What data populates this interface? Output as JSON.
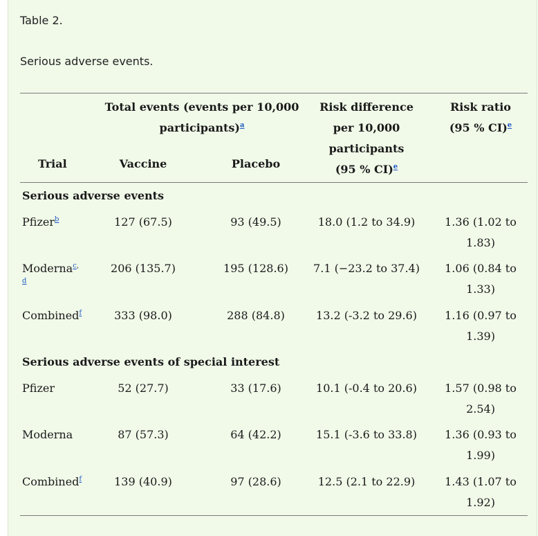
{
  "table_label": "Table 2.",
  "table_title": "Serious adverse events.",
  "headers": {
    "total_events": "Total events (events per 10,000",
    "total_events_2": "participants)",
    "total_events_fn": "a",
    "trial": "Trial",
    "vaccine": "Vaccine",
    "placebo": "Placebo",
    "risk_diff_1": "Risk difference",
    "risk_diff_2": "per 10,000",
    "risk_diff_3": "participants",
    "risk_diff_4": "(95 % CI)",
    "risk_diff_fn": "e",
    "risk_ratio_1": "Risk ratio",
    "risk_ratio_2": "(95 % CI)",
    "risk_ratio_fn": "e"
  },
  "sections": [
    {
      "title": "Serious adverse events",
      "rows": [
        {
          "trial": "Pfizer",
          "fn": [
            "b"
          ],
          "vaccine": "127 (67.5)",
          "placebo": "93 (49.5)",
          "risk_difference": "18.0 (1.2 to 34.9)",
          "risk_ratio_1": "1.36 (1.02 to",
          "risk_ratio_2": "1.83)"
        },
        {
          "trial": "Moderna",
          "fn": [
            "c",
            "d"
          ],
          "vaccine": "206 (135.7)",
          "placebo": "195 (128.6)",
          "risk_difference": "7.1 (−23.2 to 37.4)",
          "risk_ratio_1": "1.06 (0.84 to",
          "risk_ratio_2": "1.33)"
        },
        {
          "trial": "Combined",
          "fn": [
            "f"
          ],
          "vaccine": "333 (98.0)",
          "placebo": "288 (84.8)",
          "risk_difference": "13.2 (-3.2 to 29.6)",
          "risk_ratio_1": "1.16 (0.97 to",
          "risk_ratio_2": "1.39)"
        }
      ]
    },
    {
      "title": "Serious adverse events of special interest",
      "rows": [
        {
          "trial": "Pfizer",
          "fn": [],
          "vaccine": "52 (27.7)",
          "placebo": "33 (17.6)",
          "risk_difference": "10.1 (-0.4 to 20.6)",
          "risk_ratio_1": "1.57 (0.98 to",
          "risk_ratio_2": "2.54)"
        },
        {
          "trial": "Moderna",
          "fn": [],
          "vaccine": "87 (57.3)",
          "placebo": "64 (42.2)",
          "risk_difference": "15.1 (-3.6 to 33.8)",
          "risk_ratio_1": "1.36 (0.93 to",
          "risk_ratio_2": "1.99)"
        },
        {
          "trial": "Combined",
          "fn": [
            "f"
          ],
          "vaccine": "139 (40.9)",
          "placebo": "97 (28.6)",
          "risk_difference": "12.5 (2.1 to 22.9)",
          "risk_ratio_1": "1.43 (1.07 to",
          "risk_ratio_2": "1.92)"
        }
      ]
    }
  ]
}
